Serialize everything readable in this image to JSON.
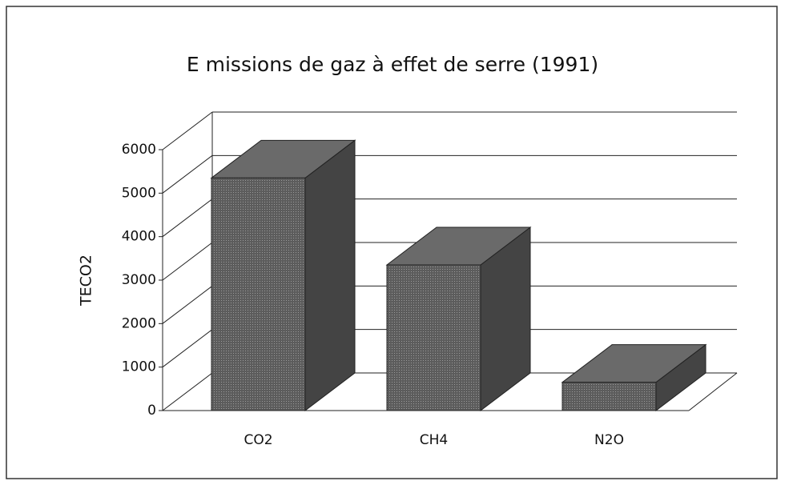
{
  "chart_data": {
    "type": "bar3d",
    "title": "E missions de gaz à effet de serre (1991)",
    "y_label": "TECO2",
    "categories": [
      "CO2",
      "CH4",
      "N2O"
    ],
    "values": [
      5350,
      3350,
      650
    ],
    "color": "#5c5c5c",
    "ylim": [
      0,
      6000
    ],
    "yticks": [
      0,
      1000,
      2000,
      3000,
      4000,
      5000,
      6000
    ],
    "grid": true
  }
}
